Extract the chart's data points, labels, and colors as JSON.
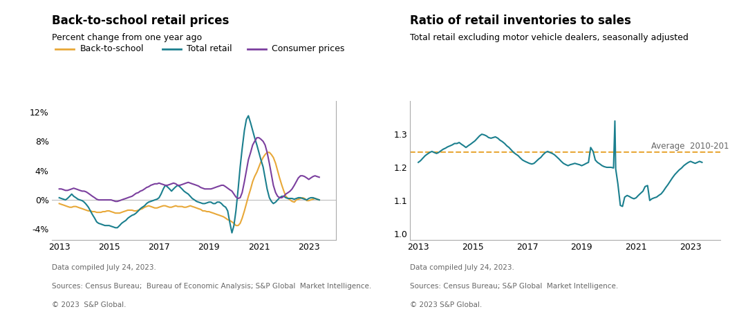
{
  "left_title": "Back-to-school retail prices",
  "left_subtitle": "Percent change from one year ago",
  "left_footnote1": "Data compiled July 24, 2023.",
  "left_footnote2": "Sources: Census Bureau;  Bureau of Economic Analysis; S&P Global  Market Intelligence.",
  "left_footnote3": "© 2023  S&P Global.",
  "right_title": "Ratio of retail inventories to sales",
  "right_subtitle": "Total retail excluding motor vehicle dealers, seasonally adjusted",
  "right_footnote1": "Data compiled July 24, 2023.",
  "right_footnote2": "Sources: Census Bureau; S&P Global  Market Intelligence.",
  "right_footnote3": "© 2023 S&P Global.",
  "left_ylim": [
    -5.5,
    13.5
  ],
  "left_yticks": [
    -4,
    0,
    4,
    8,
    12
  ],
  "left_ytick_labels": [
    "-4%",
    "0%",
    "4%",
    "8%",
    "12%"
  ],
  "left_xlim": [
    2012.7,
    2024.1
  ],
  "left_xticks": [
    2013,
    2015,
    2017,
    2019,
    2021,
    2023
  ],
  "right_ylim": [
    0.98,
    1.4
  ],
  "right_yticks": [
    1.0,
    1.1,
    1.2,
    1.3
  ],
  "right_xlim": [
    2012.7,
    2024.1
  ],
  "right_xticks": [
    2013,
    2015,
    2017,
    2019,
    2021,
    2023
  ],
  "color_bts": "#E8A838",
  "color_total": "#1B7F8E",
  "color_consumer": "#7B3F9E",
  "color_avg_line": "#E8A838",
  "avg_value": 1.246,
  "avg_label": "Average  2010-201",
  "bts_x": [
    2013.0,
    2013.08,
    2013.17,
    2013.25,
    2013.33,
    2013.42,
    2013.5,
    2013.58,
    2013.67,
    2013.75,
    2013.83,
    2013.92,
    2014.0,
    2014.08,
    2014.17,
    2014.25,
    2014.33,
    2014.42,
    2014.5,
    2014.58,
    2014.67,
    2014.75,
    2014.83,
    2014.92,
    2015.0,
    2015.08,
    2015.17,
    2015.25,
    2015.33,
    2015.42,
    2015.5,
    2015.58,
    2015.67,
    2015.75,
    2015.83,
    2015.92,
    2016.0,
    2016.08,
    2016.17,
    2016.25,
    2016.33,
    2016.42,
    2016.5,
    2016.58,
    2016.67,
    2016.75,
    2016.83,
    2016.92,
    2017.0,
    2017.08,
    2017.17,
    2017.25,
    2017.33,
    2017.42,
    2017.5,
    2017.58,
    2017.67,
    2017.75,
    2017.83,
    2017.92,
    2018.0,
    2018.08,
    2018.17,
    2018.25,
    2018.33,
    2018.42,
    2018.5,
    2018.58,
    2018.67,
    2018.75,
    2018.83,
    2018.92,
    2019.0,
    2019.08,
    2019.17,
    2019.25,
    2019.33,
    2019.42,
    2019.5,
    2019.58,
    2019.67,
    2019.75,
    2019.83,
    2019.92,
    2020.0,
    2020.08,
    2020.17,
    2020.25,
    2020.33,
    2020.42,
    2020.5,
    2020.58,
    2020.67,
    2020.75,
    2020.83,
    2020.92,
    2021.0,
    2021.08,
    2021.17,
    2021.25,
    2021.33,
    2021.42,
    2021.5,
    2021.58,
    2021.67,
    2021.75,
    2021.83,
    2021.92,
    2022.0,
    2022.08,
    2022.17,
    2022.25,
    2022.33,
    2022.42,
    2022.5,
    2022.58,
    2022.67,
    2022.75,
    2022.83,
    2022.92,
    2023.0,
    2023.08,
    2023.17,
    2023.25,
    2023.33,
    2023.42
  ],
  "bts_y": [
    -0.5,
    -0.6,
    -0.7,
    -0.8,
    -0.9,
    -1.0,
    -1.0,
    -0.9,
    -0.9,
    -1.0,
    -1.1,
    -1.2,
    -1.3,
    -1.4,
    -1.5,
    -1.5,
    -1.6,
    -1.6,
    -1.7,
    -1.7,
    -1.7,
    -1.6,
    -1.6,
    -1.5,
    -1.5,
    -1.6,
    -1.7,
    -1.8,
    -1.8,
    -1.8,
    -1.7,
    -1.6,
    -1.5,
    -1.4,
    -1.4,
    -1.4,
    -1.5,
    -1.5,
    -1.4,
    -1.3,
    -1.2,
    -1.0,
    -0.9,
    -0.8,
    -0.9,
    -1.0,
    -1.1,
    -1.1,
    -1.0,
    -0.9,
    -0.8,
    -0.8,
    -0.9,
    -1.0,
    -1.0,
    -0.9,
    -0.8,
    -0.9,
    -0.9,
    -0.9,
    -1.0,
    -1.0,
    -0.9,
    -0.8,
    -0.9,
    -1.0,
    -1.1,
    -1.2,
    -1.3,
    -1.5,
    -1.5,
    -1.6,
    -1.6,
    -1.7,
    -1.8,
    -1.9,
    -2.0,
    -2.1,
    -2.2,
    -2.3,
    -2.5,
    -2.7,
    -2.8,
    -3.0,
    -3.2,
    -3.5,
    -3.5,
    -3.2,
    -2.5,
    -1.5,
    -0.5,
    0.5,
    1.5,
    2.5,
    3.2,
    3.8,
    4.5,
    5.2,
    5.8,
    6.2,
    6.5,
    6.5,
    6.2,
    5.8,
    5.0,
    4.0,
    3.0,
    2.0,
    1.2,
    0.5,
    0.2,
    0.0,
    -0.2,
    -0.3,
    0.0,
    0.1,
    0.2,
    0.3,
    0.2,
    -0.1,
    -0.1,
    0.0,
    0.1,
    0.2,
    0.1,
    0.0
  ],
  "total_x": [
    2013.0,
    2013.08,
    2013.17,
    2013.25,
    2013.33,
    2013.42,
    2013.5,
    2013.58,
    2013.67,
    2013.75,
    2013.83,
    2013.92,
    2014.0,
    2014.08,
    2014.17,
    2014.25,
    2014.33,
    2014.42,
    2014.5,
    2014.58,
    2014.67,
    2014.75,
    2014.83,
    2014.92,
    2015.0,
    2015.08,
    2015.17,
    2015.25,
    2015.33,
    2015.42,
    2015.5,
    2015.58,
    2015.67,
    2015.75,
    2015.83,
    2015.92,
    2016.0,
    2016.08,
    2016.17,
    2016.25,
    2016.33,
    2016.42,
    2016.5,
    2016.58,
    2016.67,
    2016.75,
    2016.83,
    2016.92,
    2017.0,
    2017.08,
    2017.17,
    2017.25,
    2017.33,
    2017.42,
    2017.5,
    2017.58,
    2017.67,
    2017.75,
    2017.83,
    2017.92,
    2018.0,
    2018.08,
    2018.17,
    2018.25,
    2018.33,
    2018.42,
    2018.5,
    2018.58,
    2018.67,
    2018.75,
    2018.83,
    2018.92,
    2019.0,
    2019.08,
    2019.17,
    2019.25,
    2019.33,
    2019.42,
    2019.5,
    2019.58,
    2019.67,
    2019.75,
    2019.83,
    2019.92,
    2020.0,
    2020.08,
    2020.17,
    2020.25,
    2020.33,
    2020.42,
    2020.5,
    2020.58,
    2020.67,
    2020.75,
    2020.83,
    2020.92,
    2021.0,
    2021.08,
    2021.17,
    2021.25,
    2021.33,
    2021.42,
    2021.5,
    2021.58,
    2021.67,
    2021.75,
    2021.83,
    2021.92,
    2022.0,
    2022.08,
    2022.17,
    2022.25,
    2022.33,
    2022.42,
    2022.5,
    2022.58,
    2022.67,
    2022.75,
    2022.83,
    2022.92,
    2023.0,
    2023.08,
    2023.17,
    2023.25,
    2023.33,
    2023.42
  ],
  "total_y": [
    0.3,
    0.2,
    0.1,
    0.0,
    0.2,
    0.5,
    0.8,
    0.5,
    0.3,
    0.1,
    0.0,
    -0.1,
    -0.3,
    -0.6,
    -1.0,
    -1.5,
    -2.0,
    -2.5,
    -3.0,
    -3.2,
    -3.3,
    -3.4,
    -3.5,
    -3.5,
    -3.5,
    -3.6,
    -3.7,
    -3.8,
    -3.8,
    -3.5,
    -3.2,
    -3.0,
    -2.8,
    -2.5,
    -2.3,
    -2.1,
    -2.0,
    -1.8,
    -1.5,
    -1.2,
    -1.0,
    -0.8,
    -0.5,
    -0.3,
    -0.2,
    -0.1,
    0.0,
    0.1,
    0.3,
    0.8,
    1.5,
    2.0,
    1.8,
    1.5,
    1.2,
    1.5,
    1.8,
    2.0,
    1.8,
    1.5,
    1.2,
    1.0,
    0.8,
    0.5,
    0.2,
    0.0,
    -0.2,
    -0.3,
    -0.4,
    -0.5,
    -0.5,
    -0.4,
    -0.3,
    -0.3,
    -0.5,
    -0.5,
    -0.3,
    -0.3,
    -0.5,
    -0.8,
    -1.0,
    -1.5,
    -3.0,
    -4.5,
    -3.5,
    -1.5,
    1.5,
    4.5,
    7.0,
    9.5,
    11.0,
    11.5,
    10.5,
    9.5,
    8.5,
    7.5,
    6.5,
    5.5,
    4.5,
    3.0,
    1.5,
    0.3,
    -0.2,
    -0.5,
    -0.3,
    0.0,
    0.3,
    0.5,
    0.5,
    0.3,
    0.2,
    0.2,
    0.2,
    0.1,
    0.2,
    0.3,
    0.3,
    0.2,
    0.1,
    0.0,
    0.2,
    0.3,
    0.3,
    0.2,
    0.1,
    0.0
  ],
  "consumer_x": [
    2013.0,
    2013.08,
    2013.17,
    2013.25,
    2013.33,
    2013.42,
    2013.5,
    2013.58,
    2013.67,
    2013.75,
    2013.83,
    2013.92,
    2014.0,
    2014.08,
    2014.17,
    2014.25,
    2014.33,
    2014.42,
    2014.5,
    2014.58,
    2014.67,
    2014.75,
    2014.83,
    2014.92,
    2015.0,
    2015.08,
    2015.17,
    2015.25,
    2015.33,
    2015.42,
    2015.5,
    2015.58,
    2015.67,
    2015.75,
    2015.83,
    2015.92,
    2016.0,
    2016.08,
    2016.17,
    2016.25,
    2016.33,
    2016.42,
    2016.5,
    2016.58,
    2016.67,
    2016.75,
    2016.83,
    2016.92,
    2017.0,
    2017.08,
    2017.17,
    2017.25,
    2017.33,
    2017.42,
    2017.5,
    2017.58,
    2017.67,
    2017.75,
    2017.83,
    2017.92,
    2018.0,
    2018.08,
    2018.17,
    2018.25,
    2018.33,
    2018.42,
    2018.5,
    2018.58,
    2018.67,
    2018.75,
    2018.83,
    2018.92,
    2019.0,
    2019.08,
    2019.17,
    2019.25,
    2019.33,
    2019.42,
    2019.5,
    2019.58,
    2019.67,
    2019.75,
    2019.83,
    2019.92,
    2020.0,
    2020.08,
    2020.17,
    2020.25,
    2020.33,
    2020.42,
    2020.5,
    2020.58,
    2020.67,
    2020.75,
    2020.83,
    2020.92,
    2021.0,
    2021.08,
    2021.17,
    2021.25,
    2021.33,
    2021.42,
    2021.5,
    2021.58,
    2021.67,
    2021.75,
    2021.83,
    2021.92,
    2022.0,
    2022.08,
    2022.17,
    2022.25,
    2022.33,
    2022.42,
    2022.5,
    2022.58,
    2022.67,
    2022.75,
    2022.83,
    2022.92,
    2023.0,
    2023.08,
    2023.17,
    2023.25,
    2023.33,
    2023.42
  ],
  "consumer_y": [
    1.5,
    1.5,
    1.4,
    1.3,
    1.3,
    1.4,
    1.5,
    1.6,
    1.5,
    1.4,
    1.3,
    1.2,
    1.2,
    1.1,
    0.9,
    0.7,
    0.5,
    0.3,
    0.1,
    0.0,
    0.0,
    0.0,
    0.0,
    0.0,
    0.0,
    0.0,
    -0.1,
    -0.2,
    -0.2,
    -0.1,
    0.0,
    0.1,
    0.2,
    0.3,
    0.4,
    0.5,
    0.7,
    0.9,
    1.0,
    1.2,
    1.3,
    1.5,
    1.7,
    1.8,
    2.0,
    2.1,
    2.2,
    2.2,
    2.3,
    2.2,
    2.1,
    2.0,
    2.0,
    2.1,
    2.2,
    2.3,
    2.2,
    2.0,
    2.0,
    2.1,
    2.2,
    2.3,
    2.4,
    2.3,
    2.2,
    2.1,
    2.0,
    1.9,
    1.7,
    1.6,
    1.5,
    1.5,
    1.5,
    1.5,
    1.6,
    1.7,
    1.8,
    1.9,
    2.0,
    2.0,
    1.8,
    1.6,
    1.4,
    1.2,
    0.8,
    0.4,
    0.2,
    0.3,
    1.0,
    2.5,
    4.0,
    5.5,
    6.5,
    7.5,
    8.0,
    8.5,
    8.5,
    8.3,
    8.0,
    7.5,
    6.5,
    5.0,
    3.5,
    2.0,
    1.0,
    0.5,
    0.3,
    0.3,
    0.5,
    0.8,
    1.0,
    1.2,
    1.5,
    2.0,
    2.5,
    3.0,
    3.3,
    3.3,
    3.2,
    3.0,
    2.8,
    3.0,
    3.2,
    3.3,
    3.2,
    3.1
  ],
  "inv_x": [
    2013.0,
    2013.08,
    2013.17,
    2013.25,
    2013.33,
    2013.42,
    2013.5,
    2013.58,
    2013.67,
    2013.75,
    2013.83,
    2013.92,
    2014.0,
    2014.08,
    2014.17,
    2014.25,
    2014.33,
    2014.42,
    2014.5,
    2014.58,
    2014.67,
    2014.75,
    2014.83,
    2014.92,
    2015.0,
    2015.08,
    2015.17,
    2015.25,
    2015.33,
    2015.42,
    2015.5,
    2015.58,
    2015.67,
    2015.75,
    2015.83,
    2015.92,
    2016.0,
    2016.08,
    2016.17,
    2016.25,
    2016.33,
    2016.42,
    2016.5,
    2016.58,
    2016.67,
    2016.75,
    2016.83,
    2016.92,
    2017.0,
    2017.08,
    2017.17,
    2017.25,
    2017.33,
    2017.42,
    2017.5,
    2017.58,
    2017.67,
    2017.75,
    2017.83,
    2017.92,
    2018.0,
    2018.08,
    2018.17,
    2018.25,
    2018.33,
    2018.42,
    2018.5,
    2018.58,
    2018.67,
    2018.75,
    2018.83,
    2018.92,
    2019.0,
    2019.08,
    2019.17,
    2019.25,
    2019.33,
    2019.42,
    2019.5,
    2019.58,
    2019.67,
    2019.75,
    2019.83,
    2019.92,
    2020.0,
    2020.08,
    2020.17,
    2020.22,
    2020.25,
    2020.33,
    2020.42,
    2020.5,
    2020.58,
    2020.67,
    2020.75,
    2020.83,
    2020.92,
    2021.0,
    2021.08,
    2021.17,
    2021.25,
    2021.33,
    2021.42,
    2021.5,
    2021.58,
    2021.67,
    2021.75,
    2021.83,
    2021.92,
    2022.0,
    2022.08,
    2022.17,
    2022.25,
    2022.33,
    2022.42,
    2022.5,
    2022.58,
    2022.67,
    2022.75,
    2022.83,
    2022.92,
    2023.0,
    2023.08,
    2023.17,
    2023.25,
    2023.33,
    2023.42
  ],
  "inv_y": [
    1.215,
    1.22,
    1.228,
    1.235,
    1.24,
    1.245,
    1.248,
    1.245,
    1.242,
    1.245,
    1.25,
    1.255,
    1.258,
    1.262,
    1.265,
    1.268,
    1.272,
    1.272,
    1.275,
    1.27,
    1.265,
    1.26,
    1.265,
    1.27,
    1.275,
    1.28,
    1.288,
    1.295,
    1.3,
    1.298,
    1.295,
    1.29,
    1.288,
    1.29,
    1.292,
    1.288,
    1.282,
    1.278,
    1.272,
    1.265,
    1.26,
    1.252,
    1.245,
    1.24,
    1.235,
    1.228,
    1.222,
    1.218,
    1.215,
    1.212,
    1.21,
    1.212,
    1.218,
    1.225,
    1.23,
    1.238,
    1.245,
    1.248,
    1.245,
    1.242,
    1.238,
    1.232,
    1.225,
    1.218,
    1.212,
    1.208,
    1.205,
    1.208,
    1.21,
    1.212,
    1.21,
    1.208,
    1.205,
    1.208,
    1.212,
    1.215,
    1.26,
    1.248,
    1.222,
    1.215,
    1.21,
    1.205,
    1.202,
    1.2,
    1.2,
    1.2,
    1.198,
    1.34,
    1.195,
    1.15,
    1.085,
    1.082,
    1.11,
    1.115,
    1.112,
    1.108,
    1.105,
    1.108,
    1.115,
    1.122,
    1.128,
    1.142,
    1.145,
    1.1,
    1.105,
    1.108,
    1.11,
    1.115,
    1.12,
    1.128,
    1.138,
    1.148,
    1.158,
    1.168,
    1.178,
    1.185,
    1.192,
    1.198,
    1.205,
    1.21,
    1.215,
    1.218,
    1.215,
    1.212,
    1.215,
    1.218,
    1.215
  ]
}
